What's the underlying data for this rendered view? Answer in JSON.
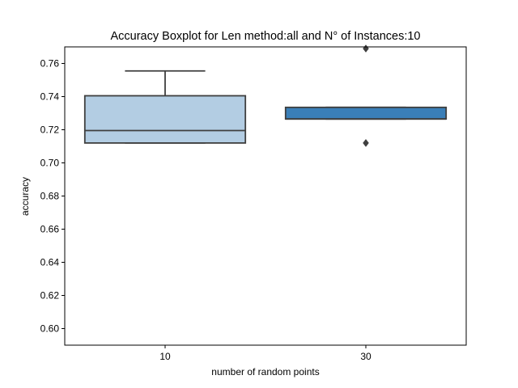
{
  "chart_data": {
    "type": "boxplot",
    "title": "Accuracy Boxplot for Len method:all and N° of Instances:10",
    "xlabel": "number of random points",
    "ylabel": "accuracy",
    "ylim": [
      0.59,
      0.77
    ],
    "yticks": [
      "0.60",
      "0.62",
      "0.64",
      "0.66",
      "0.68",
      "0.70",
      "0.72",
      "0.74",
      "0.76"
    ],
    "grid": false,
    "categories": [
      "10",
      "30"
    ],
    "boxes": [
      {
        "category": "10",
        "color": "#b3cde3",
        "q1": 0.712,
        "median": 0.7195,
        "q3": 0.7405,
        "whisker_low": 0.712,
        "whisker_high": 0.7555,
        "outliers": []
      },
      {
        "category": "30",
        "color": "#3a7fb8",
        "q1": 0.7265,
        "median": 0.7265,
        "q3": 0.7335,
        "whisker_low": 0.7265,
        "whisker_high": 0.7335,
        "outliers": [
          0.712,
          0.769
        ]
      }
    ]
  }
}
